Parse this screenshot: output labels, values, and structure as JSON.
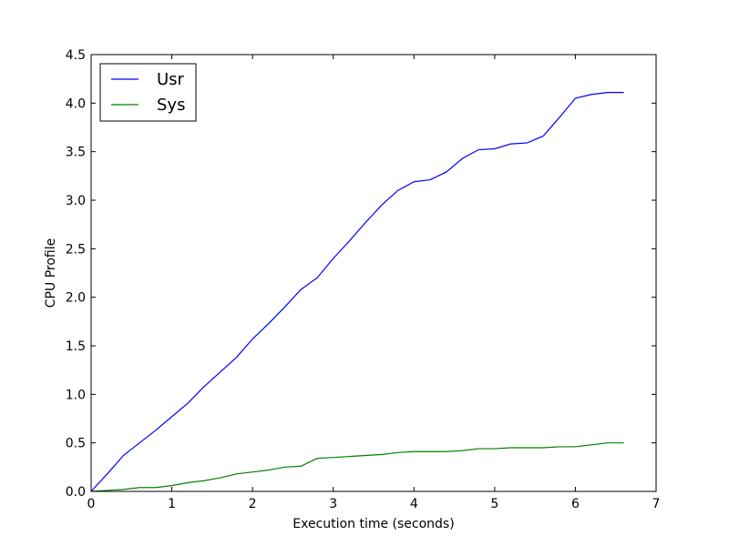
{
  "chart_data": {
    "type": "line",
    "xlabel": "Execution time (seconds)",
    "ylabel": "CPU Profile",
    "xlim": [
      0,
      7
    ],
    "ylim": [
      0,
      4.5
    ],
    "x_ticks": [
      "0",
      "1",
      "2",
      "3",
      "4",
      "5",
      "6",
      "7"
    ],
    "y_ticks": [
      "0.0",
      "0.5",
      "1.0",
      "1.5",
      "2.0",
      "2.5",
      "3.0",
      "3.5",
      "4.0",
      "4.5"
    ],
    "grid": false,
    "legend_position": "top-left",
    "x": [
      0.0,
      0.2,
      0.4,
      0.6,
      0.8,
      1.0,
      1.2,
      1.4,
      1.6,
      1.8,
      2.0,
      2.2,
      2.4,
      2.6,
      2.8,
      3.0,
      3.2,
      3.4,
      3.6,
      3.8,
      4.0,
      4.2,
      4.4,
      4.6,
      4.8,
      5.0,
      5.2,
      5.4,
      5.6,
      5.8,
      6.0,
      6.2,
      6.4,
      6.6
    ],
    "series": [
      {
        "name": "Usr",
        "color": "#0000ff",
        "values": [
          0.0,
          0.18,
          0.37,
          0.5,
          0.63,
          0.77,
          0.91,
          1.08,
          1.23,
          1.38,
          1.57,
          1.73,
          1.9,
          2.08,
          2.2,
          2.4,
          2.58,
          2.77,
          2.95,
          3.1,
          3.19,
          3.21,
          3.29,
          3.43,
          3.52,
          3.53,
          3.58,
          3.59,
          3.66,
          3.85,
          4.05,
          4.09,
          4.11,
          4.11
        ]
      },
      {
        "name": "Sys",
        "color": "#008000",
        "values": [
          0.0,
          0.01,
          0.02,
          0.04,
          0.04,
          0.06,
          0.09,
          0.11,
          0.14,
          0.18,
          0.2,
          0.22,
          0.25,
          0.26,
          0.34,
          0.35,
          0.36,
          0.37,
          0.38,
          0.4,
          0.41,
          0.41,
          0.41,
          0.42,
          0.44,
          0.44,
          0.45,
          0.45,
          0.45,
          0.46,
          0.46,
          0.48,
          0.5,
          0.5
        ]
      }
    ]
  }
}
